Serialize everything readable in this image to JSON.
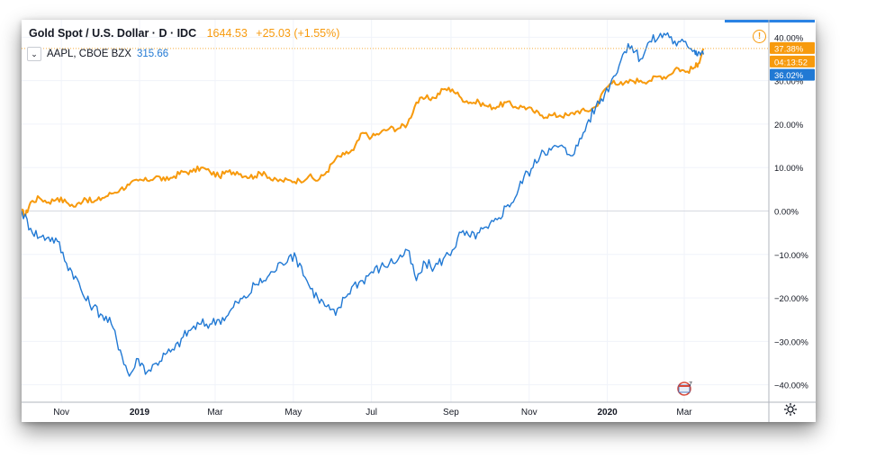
{
  "header": {
    "symbol": "Gold Spot / U.S. Dollar · D · IDC",
    "price": "1644.53",
    "change": "+25.03 (+1.55%)"
  },
  "legend": {
    "toggle_glyph": "⌄",
    "symbol": "AAPL, CBOE BZX",
    "value": "315.66"
  },
  "badge_label": "7",
  "colors": {
    "gold": "#f79a0d",
    "aapl": "#2179d4",
    "grid": "#f0f3fa",
    "axis_text": "#131722"
  },
  "icons": [
    "alert-icon",
    "gear-icon",
    "chevron-down-icon",
    "calendar-badge-icon"
  ],
  "chart_data": {
    "type": "line",
    "x_axis": {
      "ticks": [
        {
          "label": "Nov",
          "date": "2018-11-01"
        },
        {
          "label": "2019",
          "date": "2019-01-01",
          "bold": true
        },
        {
          "label": "Mar",
          "date": "2019-03-01"
        },
        {
          "label": "May",
          "date": "2019-05-01"
        },
        {
          "label": "Jul",
          "date": "2019-07-01"
        },
        {
          "label": "Sep",
          "date": "2019-09-01"
        },
        {
          "label": "Nov",
          "date": "2019-11-01"
        },
        {
          "label": "2020",
          "date": "2020-01-01",
          "bold": true
        },
        {
          "label": "Mar",
          "date": "2020-03-01"
        }
      ],
      "range": [
        "2018-10-01",
        "2020-05-06"
      ]
    },
    "y_axis": {
      "unit": "%",
      "range": [
        -44,
        44
      ],
      "ticks": [
        40,
        30,
        20,
        10,
        0,
        -10,
        -20,
        -30,
        -40
      ],
      "tick_labels": [
        "40.00%",
        "30.00%",
        "20.00%",
        "10.00%",
        "0.00%",
        "−10.00%",
        "−20.00%",
        "−30.00%",
        "−40.00%"
      ]
    },
    "grid": true,
    "series": [
      {
        "name": "Gold Spot / U.S. Dollar",
        "color": "#f79a0d",
        "points": [
          [
            "2018-10-01",
            0
          ],
          [
            "2018-10-04",
            -1
          ],
          [
            "2018-10-08",
            2
          ],
          [
            "2018-10-15",
            3
          ],
          [
            "2018-10-22",
            2
          ],
          [
            "2018-10-29",
            3
          ],
          [
            "2018-11-05",
            2
          ],
          [
            "2018-11-12",
            1
          ],
          [
            "2018-11-19",
            3
          ],
          [
            "2018-11-26",
            2
          ],
          [
            "2018-12-03",
            3
          ],
          [
            "2018-12-10",
            4
          ],
          [
            "2018-12-17",
            5
          ],
          [
            "2018-12-24",
            6
          ],
          [
            "2018-12-31",
            7
          ],
          [
            "2019-01-07",
            7
          ],
          [
            "2019-01-14",
            8
          ],
          [
            "2019-01-21",
            7
          ],
          [
            "2019-01-28",
            8
          ],
          [
            "2019-02-04",
            9
          ],
          [
            "2019-02-11",
            9
          ],
          [
            "2019-02-18",
            10
          ],
          [
            "2019-02-25",
            9
          ],
          [
            "2019-03-04",
            8
          ],
          [
            "2019-03-11",
            9
          ],
          [
            "2019-03-18",
            9
          ],
          [
            "2019-03-25",
            8
          ],
          [
            "2019-04-01",
            8
          ],
          [
            "2019-04-08",
            9
          ],
          [
            "2019-04-15",
            7
          ],
          [
            "2019-04-22",
            7
          ],
          [
            "2019-04-29",
            7
          ],
          [
            "2019-05-06",
            7
          ],
          [
            "2019-05-13",
            8
          ],
          [
            "2019-05-20",
            7
          ],
          [
            "2019-05-27",
            9
          ],
          [
            "2019-06-03",
            12
          ],
          [
            "2019-06-10",
            13
          ],
          [
            "2019-06-17",
            14
          ],
          [
            "2019-06-24",
            18
          ],
          [
            "2019-07-01",
            17
          ],
          [
            "2019-07-08",
            18
          ],
          [
            "2019-07-15",
            19
          ],
          [
            "2019-07-22",
            19
          ],
          [
            "2019-07-29",
            20
          ],
          [
            "2019-08-05",
            25
          ],
          [
            "2019-08-12",
            26
          ],
          [
            "2019-08-19",
            26
          ],
          [
            "2019-08-26",
            28
          ],
          [
            "2019-09-02",
            28
          ],
          [
            "2019-09-09",
            26
          ],
          [
            "2019-09-16",
            25
          ],
          [
            "2019-09-23",
            25
          ],
          [
            "2019-09-30",
            24
          ],
          [
            "2019-10-07",
            24
          ],
          [
            "2019-10-14",
            25
          ],
          [
            "2019-10-21",
            24
          ],
          [
            "2019-10-28",
            24
          ],
          [
            "2019-11-04",
            23
          ],
          [
            "2019-11-11",
            22
          ],
          [
            "2019-11-18",
            22
          ],
          [
            "2019-11-25",
            22
          ],
          [
            "2019-12-02",
            22
          ],
          [
            "2019-12-09",
            23
          ],
          [
            "2019-12-16",
            23
          ],
          [
            "2019-12-23",
            24
          ],
          [
            "2019-12-30",
            28
          ],
          [
            "2020-01-06",
            30
          ],
          [
            "2020-01-13",
            29
          ],
          [
            "2020-01-20",
            30
          ],
          [
            "2020-01-27",
            30
          ],
          [
            "2020-02-03",
            30
          ],
          [
            "2020-02-10",
            31
          ],
          [
            "2020-02-17",
            31
          ],
          [
            "2020-02-24",
            33
          ],
          [
            "2020-03-02",
            32
          ],
          [
            "2020-03-09",
            33
          ],
          [
            "2020-03-12",
            34
          ],
          [
            "2020-03-16",
            37.4
          ]
        ],
        "last_label": "37.38%",
        "timer_label": "04:13:52"
      },
      {
        "name": "AAPL, CBOE BZX",
        "color": "#2179d4",
        "points": [
          [
            "2018-10-01",
            0
          ],
          [
            "2018-10-08",
            -4
          ],
          [
            "2018-10-15",
            -6
          ],
          [
            "2018-10-22",
            -6
          ],
          [
            "2018-10-29",
            -7
          ],
          [
            "2018-11-05",
            -12
          ],
          [
            "2018-11-12",
            -15
          ],
          [
            "2018-11-19",
            -20
          ],
          [
            "2018-11-26",
            -22
          ],
          [
            "2018-12-03",
            -24
          ],
          [
            "2018-12-10",
            -26
          ],
          [
            "2018-12-17",
            -32
          ],
          [
            "2018-12-24",
            -38
          ],
          [
            "2018-12-31",
            -34
          ],
          [
            "2019-01-07",
            -37
          ],
          [
            "2019-01-14",
            -35
          ],
          [
            "2019-01-21",
            -33
          ],
          [
            "2019-01-28",
            -32
          ],
          [
            "2019-02-04",
            -29
          ],
          [
            "2019-02-11",
            -27
          ],
          [
            "2019-02-18",
            -26
          ],
          [
            "2019-02-25",
            -26
          ],
          [
            "2019-03-04",
            -25
          ],
          [
            "2019-03-11",
            -24
          ],
          [
            "2019-03-18",
            -21
          ],
          [
            "2019-03-25",
            -20
          ],
          [
            "2019-04-01",
            -17
          ],
          [
            "2019-04-08",
            -16
          ],
          [
            "2019-04-15",
            -14
          ],
          [
            "2019-04-22",
            -12
          ],
          [
            "2019-04-29",
            -10
          ],
          [
            "2019-05-06",
            -12
          ],
          [
            "2019-05-13",
            -17
          ],
          [
            "2019-05-20",
            -20
          ],
          [
            "2019-05-27",
            -22
          ],
          [
            "2019-06-03",
            -24
          ],
          [
            "2019-06-10",
            -20
          ],
          [
            "2019-06-17",
            -17
          ],
          [
            "2019-06-24",
            -16
          ],
          [
            "2019-07-01",
            -14
          ],
          [
            "2019-07-08",
            -13
          ],
          [
            "2019-07-15",
            -12
          ],
          [
            "2019-07-22",
            -11
          ],
          [
            "2019-07-29",
            -9
          ],
          [
            "2019-08-05",
            -16
          ],
          [
            "2019-08-12",
            -12
          ],
          [
            "2019-08-19",
            -13
          ],
          [
            "2019-08-26",
            -11
          ],
          [
            "2019-09-02",
            -9
          ],
          [
            "2019-09-09",
            -5
          ],
          [
            "2019-09-16",
            -6
          ],
          [
            "2019-09-23",
            -5
          ],
          [
            "2019-09-30",
            -4
          ],
          [
            "2019-10-07",
            -2
          ],
          [
            "2019-10-14",
            1
          ],
          [
            "2019-10-21",
            3
          ],
          [
            "2019-10-28",
            8
          ],
          [
            "2019-11-04",
            10
          ],
          [
            "2019-11-11",
            14
          ],
          [
            "2019-11-18",
            14
          ],
          [
            "2019-11-25",
            15
          ],
          [
            "2019-12-02",
            13
          ],
          [
            "2019-12-09",
            15
          ],
          [
            "2019-12-16",
            20
          ],
          [
            "2019-12-23",
            24
          ],
          [
            "2019-12-30",
            27
          ],
          [
            "2020-01-06",
            31
          ],
          [
            "2020-01-13",
            36
          ],
          [
            "2020-01-20",
            38
          ],
          [
            "2020-01-27",
            35
          ],
          [
            "2020-02-03",
            39
          ],
          [
            "2020-02-10",
            40
          ],
          [
            "2020-02-17",
            41
          ],
          [
            "2020-02-24",
            38
          ],
          [
            "2020-03-02",
            39
          ],
          [
            "2020-03-09",
            37
          ],
          [
            "2020-03-12",
            36.6
          ],
          [
            "2020-03-16",
            36
          ]
        ],
        "last_label": "36.02%"
      }
    ]
  }
}
